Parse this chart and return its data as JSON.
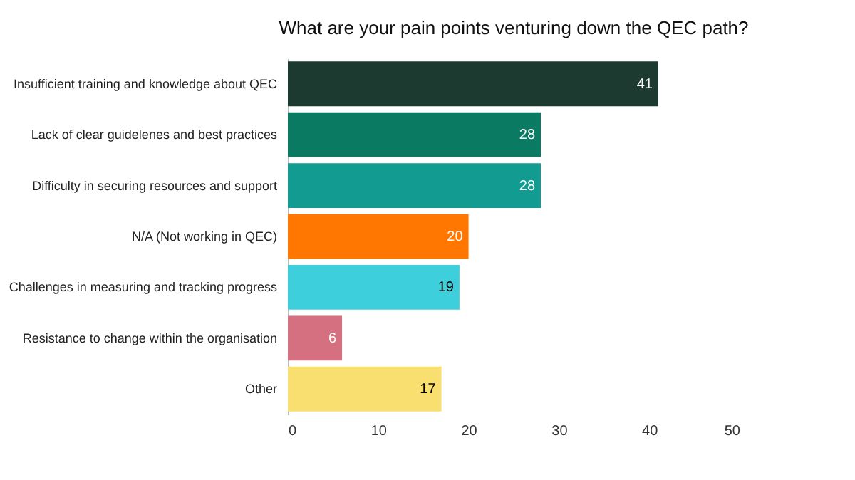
{
  "chart_data": {
    "type": "bar",
    "orientation": "horizontal",
    "title": "What are your pain points venturing down the QEC path?",
    "categories": [
      "Insufficient training and knowledge about QEC",
      "Lack of clear guidelenes and best practices",
      "Difficulty in securing resources and support",
      "N/A (Not working in QEC)",
      "Challenges in measuring and tracking progress",
      "Resistance to change within the organisation",
      "Other"
    ],
    "values": [
      41,
      28,
      28,
      20,
      19,
      6,
      17
    ],
    "colors": [
      "#1c3a30",
      "#0b7a62",
      "#119b91",
      "#ff7700",
      "#3ecfdc",
      "#d4707f",
      "#f8df6f"
    ],
    "xlim": [
      0,
      50
    ],
    "xticks": [
      0,
      10,
      20,
      30,
      40,
      50
    ],
    "grid": false,
    "data_labels": true
  }
}
